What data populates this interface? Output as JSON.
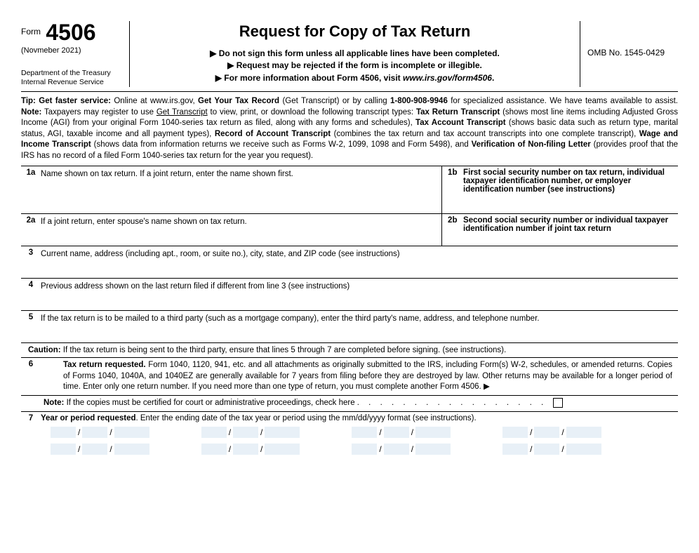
{
  "header": {
    "form_word": "Form",
    "form_number": "4506",
    "form_date": "(Novmeber 2021)",
    "dept1": "Department of the Treasury",
    "dept2": "Internal Revenue Service",
    "title": "Request for Copy of Tax Return",
    "sub1": "Do not sign this form unless all applicable lines have been completed.",
    "sub2": "Request may be rejected if the form is incomplete or illegible.",
    "sub3_a": "For more information about Form 4506, visit ",
    "sub3_b": "www.irs.gov/form4506",
    "sub3_c": ".",
    "omb": "OMB No. 1545-0429"
  },
  "tip": {
    "t1a": "Tip: Get faster service:",
    "t1b": " Online at www.irs.gov, ",
    "t1c": "Get Your Tax Record",
    "t1d": " (Get Transcript) or by calling ",
    "t1e": "1-800-908-9946",
    "t1f": " for specialized assistance. We have teams available to assist. ",
    "t2a": "Note:",
    "t2b": " Taxpayers may register to use ",
    "t2c": "Get Transcript",
    "t2d": " to view, print, or download the following transcript types: ",
    "t3a": "Tax Return Transcript",
    "t3b": " (shows most line items including Adjusted Gross Income (AGI) from your original Form 1040-series tax return as filed, along with any forms and schedules), ",
    "t4a": "Tax Account Transcript",
    "t4b": " (shows basic data such as return type, marital status, AGI, taxable income and all payment types), ",
    "t5a": "Record of Account Transcript",
    "t5b": " (combines the tax return and tax account transcripts into one complete transcript), ",
    "t6a": "Wage and Income Transcript",
    "t6b": " (shows data from information returns we receive such as Forms W-2, 1099, 1098 and Form 5498), and ",
    "t7a": "Verification of Non-filing Letter",
    "t7b": " (provides proof that the IRS has no record of a filed Form 1040-series tax return for the year you request)."
  },
  "lines": {
    "l1a_num": "1a",
    "l1a": "Name shown on tax return. If a joint return, enter the name shown first.",
    "l1b_num": "1b",
    "l1b": "First social security number on tax return, individual taxpayer identification number, or employer identification number (see instructions)",
    "l2a_num": "2a",
    "l2a": "If a joint return, enter spouse's name shown on tax return.",
    "l2b_num": "2b",
    "l2b": "Second social security number or individual taxpayer identification number if joint tax return",
    "l3_num": "3",
    "l3": "Current name, address (including apt., room, or suite no.), city, state, and ZIP code (see instructions)",
    "l4_num": "4",
    "l4": "Previous address shown on the last return filed if different from line 3 (see instructions)",
    "l5_num": "5",
    "l5": "If the tax return is to be mailed to a third party (such as a mortgage company), enter the third party's name, address, and telephone number.",
    "caution_a": "Caution:",
    "caution_b": " If the tax return is being sent to the third party, ensure that lines 5 through 7 are completed before signing. (see instructions).",
    "l6_num": "6",
    "l6a": "Tax return requested.",
    "l6b": " Form 1040, 1120, 941, etc. and all attachments as originally submitted to the IRS, including Form(s) W-2, schedules, or amended returns. Copies of Forms 1040, 1040A, and 1040EZ are generally available for 7 years from filing before they are destroyed by law. Other returns may be available for a longer period of time. Enter only one return number. If you need more than one type of return, you must complete another Form 4506. ",
    "note_a": "Note:",
    "note_b": " If the copies must be certified for court or administrative proceedings, check here ",
    "l7_num": "7",
    "l7a": "Year or period requested",
    "l7b": ". Enter the ending date of the tax year or period using the mm/dd/yyyy format (see instructions)."
  }
}
